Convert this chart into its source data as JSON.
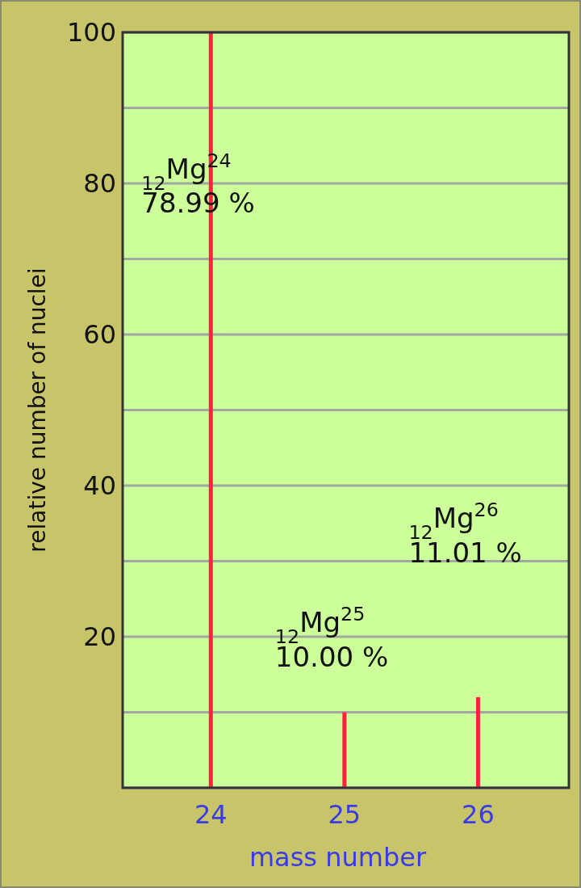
{
  "chart_data": {
    "type": "bar",
    "xlabel": "mass number",
    "ylabel": "relative number of nuclei",
    "x": [
      24,
      25,
      26
    ],
    "values": [
      100,
      10,
      12
    ],
    "color": "#ff2040",
    "xlim": [
      23.34,
      26.68
    ],
    "xticks": [
      24,
      25,
      26
    ],
    "ylim": [
      0,
      100
    ],
    "yticks": [
      {
        "value": 0,
        "label": null
      },
      {
        "value": 10,
        "label": null
      },
      20,
      {
        "value": 30,
        "label": null
      },
      40,
      {
        "value": 50,
        "label": null
      },
      60,
      {
        "value": 70,
        "label": null
      },
      80,
      {
        "value": 90,
        "label": null
      },
      100
    ],
    "grid": "y",
    "annotations": [
      "$_{12}$Mg$^{24}$\n78.99 %",
      "$_{12}$Mg$^{25}$\n10.00 %",
      "$_{12}$Mg$^{26}$\n11.01 %"
    ]
  }
}
